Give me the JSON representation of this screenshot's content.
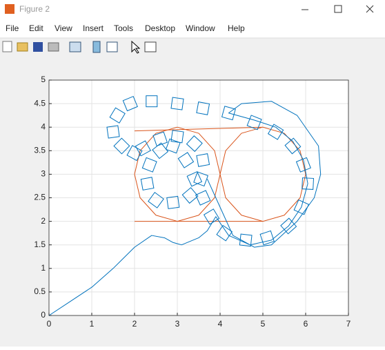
{
  "window": {
    "title": "Figure 2"
  },
  "menu": [
    "File",
    "Edit",
    "View",
    "Insert",
    "Tools",
    "Desktop",
    "Window",
    "Help"
  ],
  "chart_data": {
    "type": "line",
    "xlim": [
      0,
      7
    ],
    "ylim": [
      0,
      5
    ],
    "xticks": [
      0,
      1,
      2,
      3,
      4,
      5,
      6,
      7
    ],
    "yticks": [
      0,
      0.5,
      1,
      1.5,
      2,
      2.5,
      3,
      3.5,
      4,
      4.5,
      5
    ],
    "grid": true,
    "series": [
      {
        "color": "#d95319",
        "marker": "none",
        "linestyle": "-",
        "x": [
          2,
          5,
          5.5,
          5.87,
          6,
          5.87,
          5.5,
          5,
          4.5,
          4.13,
          4,
          4.13,
          4.5,
          5,
          null,
          5,
          2,
          null,
          3,
          3.5,
          3.87,
          4,
          3.87,
          3.5,
          3,
          2.5,
          2.13,
          2,
          2.13,
          2.5,
          3
        ],
        "values": [
          3.92,
          4,
          3.87,
          3.5,
          3,
          2.5,
          2.13,
          2,
          2.13,
          2.5,
          3,
          3.5,
          3.87,
          4,
          null,
          2,
          2,
          null,
          4,
          3.87,
          3.5,
          3,
          2.5,
          2.13,
          2,
          2.13,
          2.5,
          3,
          3.5,
          3.87,
          4
        ]
      },
      {
        "color": "#0072bd",
        "marker": "square",
        "linestyle": "none",
        "x": [
          2.0,
          1.7,
          1.5,
          1.6,
          1.9,
          2.4,
          3.0,
          3.6,
          4.2,
          4.8,
          5.3,
          5.7,
          5.95,
          6.05,
          5.9,
          5.6,
          5.1,
          4.6,
          4.1,
          3.8,
          3.6,
          3.4,
          3.2,
          2.9,
          2.6,
          2.35,
          2.3,
          2.5,
          2.9,
          3.3,
          3.55,
          3.6,
          3.4,
          3.0,
          2.6,
          2.2
        ],
        "values": [
          3.45,
          3.6,
          3.9,
          4.25,
          4.5,
          4.55,
          4.5,
          4.4,
          4.3,
          4.1,
          3.9,
          3.6,
          3.2,
          2.8,
          2.3,
          1.9,
          1.65,
          1.6,
          1.75,
          2.1,
          2.5,
          2.9,
          3.3,
          3.6,
          3.5,
          3.2,
          2.8,
          2.45,
          2.4,
          2.55,
          2.9,
          3.3,
          3.65,
          3.8,
          3.75,
          3.55
        ]
      },
      {
        "color": "#0072bd",
        "marker": "none",
        "linestyle": "-",
        "x": [
          0,
          0.5,
          1,
          1.5,
          2.0,
          2.4,
          2.7,
          2.9,
          3.1,
          3.5,
          3.7,
          3.9,
          4.2,
          4.7,
          5.2,
          5.6,
          5.9,
          6.05,
          5.95,
          5.7,
          5.3,
          4.8,
          4.2,
          4.5,
          5.2,
          5.8,
          6.3,
          6.35,
          6.2,
          5.8,
          5.2,
          4.8,
          4.3,
          4.0,
          3.7
        ],
        "values": [
          0,
          0.3,
          0.6,
          1.0,
          1.45,
          1.7,
          1.65,
          1.55,
          1.5,
          1.65,
          1.8,
          2.1,
          1.7,
          1.5,
          1.6,
          1.9,
          2.3,
          2.8,
          3.3,
          3.7,
          4.0,
          4.15,
          4.3,
          4.5,
          4.55,
          4.25,
          3.6,
          3.0,
          2.5,
          2.0,
          1.5,
          1.45,
          1.7,
          2.3,
          2.9
        ]
      }
    ]
  }
}
